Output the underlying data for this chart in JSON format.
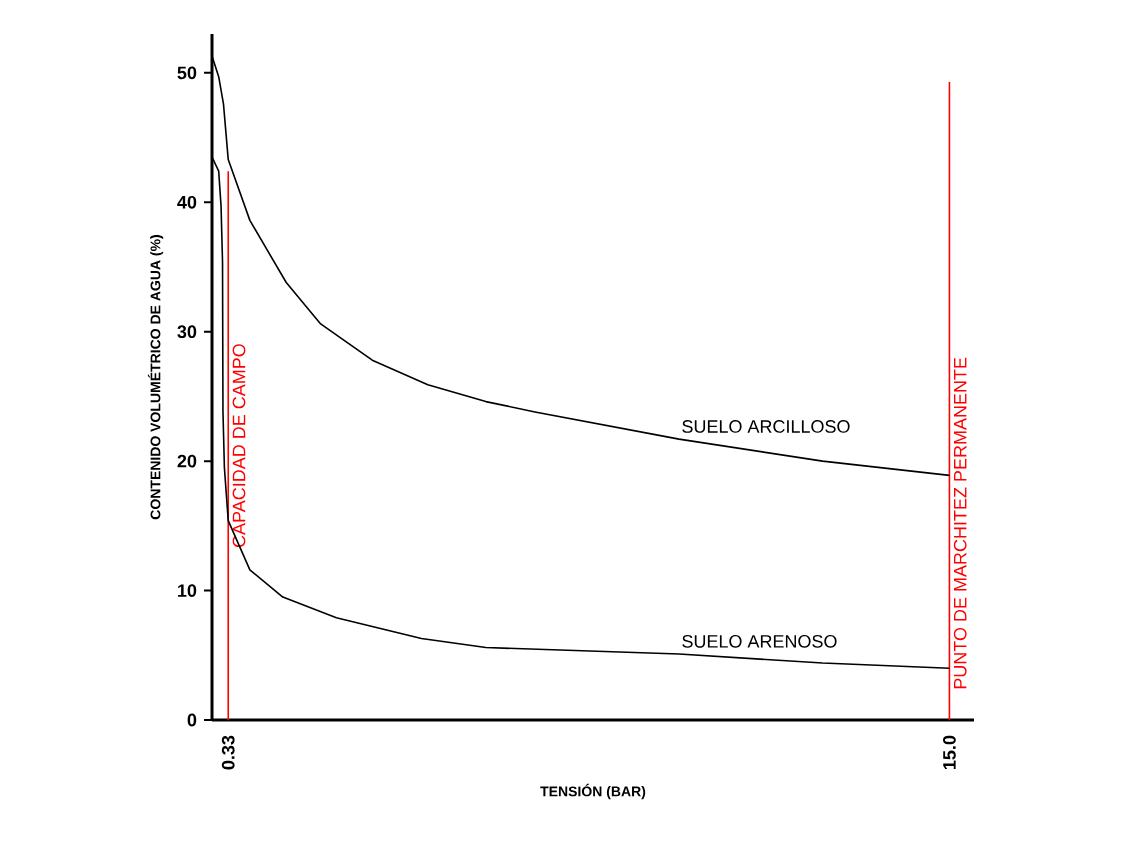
{
  "chart_data": {
    "type": "line",
    "xlabel": "TENSIÓN (BAR)",
    "ylabel": "CONTENIDO VOLUMÉTRICO DE AGUA (%)",
    "xlim": [
      0,
      15.5
    ],
    "xticks": [
      {
        "value": 0.33,
        "label": "0.33"
      },
      {
        "value": 15.0,
        "label": "15.0"
      }
    ],
    "ylim": [
      0,
      53
    ],
    "yticks": [
      0,
      10,
      20,
      30,
      40,
      50
    ],
    "grid": false,
    "legend": false,
    "marker": "none",
    "line_style": "solid",
    "series": [
      {
        "name": "SUELO ARCILLOSO",
        "color": "#000000",
        "x": [
          0,
          0.136,
          0.233,
          0.33,
          0.77,
          1.51,
          2.21,
          3.26,
          4.39,
          5.57,
          6.57,
          9.5,
          12.42,
          15.0
        ],
        "values": [
          51.3,
          49.7,
          47.6,
          43.3,
          38.6,
          33.8,
          30.6,
          27.8,
          25.9,
          24.6,
          23.8,
          21.7,
          20.0,
          18.9
        ]
      },
      {
        "name": "SUELO ARENOSO",
        "color": "#000000",
        "x": [
          0,
          0.136,
          0.184,
          0.214,
          0.223,
          0.252,
          0.33,
          0.77,
          1.44,
          2.53,
          4.26,
          5.57,
          9.5,
          12.42,
          15.0
        ],
        "values": [
          43.5,
          42.4,
          39.7,
          35.4,
          23.8,
          19.5,
          15.4,
          11.6,
          9.5,
          7.9,
          6.3,
          5.6,
          5.1,
          4.4,
          4.0
        ]
      }
    ],
    "ref_lines": [
      {
        "axis": "x",
        "value": 0.33,
        "label": "CAPACIDAD DE CAMPO",
        "color": "#ff0000"
      },
      {
        "axis": "x",
        "value": 15.0,
        "label": "PUNTO DE MARCHITEZ PERMANENTE",
        "color": "#ff0000"
      }
    ]
  }
}
